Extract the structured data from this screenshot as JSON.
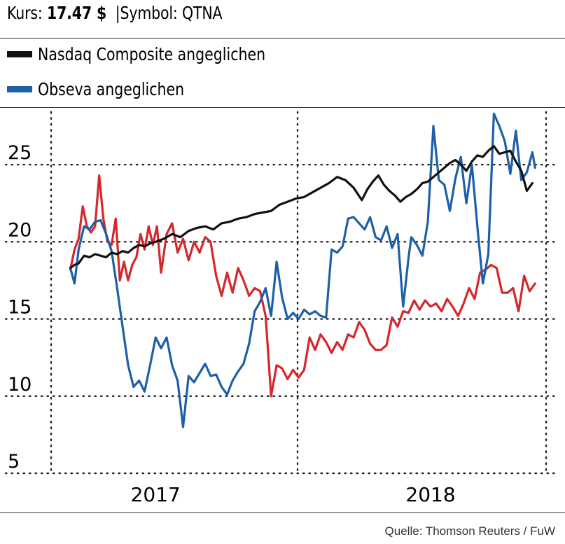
{
  "header": {
    "kurs_label": "Kurs:",
    "kurs_value": "17.47 $",
    "symbol_text": "Symbol: QTNA"
  },
  "source": "Quelle: Thomson Reuters / FuW",
  "colors": {
    "nasdaq": "#111111",
    "obseva": "#1f5fa8",
    "quantenna": "#d4282c",
    "grid": "#222222"
  },
  "chart_data": {
    "type": "line",
    "title": "",
    "xlabel": "",
    "ylabel": "",
    "ylim": [
      5,
      28.5
    ],
    "yticks": [
      5,
      10,
      15,
      20,
      25
    ],
    "xlim": [
      2016.62,
      2018.42
    ],
    "x_ticks": [
      {
        "label": "2017",
        "x": 2017.0
      },
      {
        "label": "2018",
        "x": 2018.0
      }
    ],
    "grid": true,
    "legend": "top-left",
    "series": [
      {
        "name": "Nasdaq Composite angeglichen",
        "color": "#111111",
        "x": [
          2016.69,
          2016.705,
          2016.72,
          2016.74,
          2016.76,
          2016.78,
          2016.8,
          2016.82,
          2016.84,
          2016.86,
          2016.88,
          2016.9,
          2016.92,
          2016.94,
          2016.96,
          2016.98,
          2017.0,
          2017.03,
          2017.06,
          2017.09,
          2017.12,
          2017.15,
          2017.18,
          2017.21,
          2017.24,
          2017.27,
          2017.3,
          2017.33,
          2017.36,
          2017.39,
          2017.42,
          2017.45,
          2017.48,
          2017.51,
          2017.54,
          2017.57,
          2017.6,
          2017.63,
          2017.66,
          2017.69,
          2017.72,
          2017.75,
          2017.77,
          2017.79,
          2017.81,
          2017.83,
          2017.85,
          2017.87,
          2017.89,
          2017.91,
          2017.93,
          2017.95,
          2017.97,
          2017.99,
          2018.01,
          2018.03,
          2018.05,
          2018.07,
          2018.09,
          2018.11,
          2018.13,
          2018.15,
          2018.17,
          2018.19,
          2018.21,
          2018.23,
          2018.25,
          2018.27,
          2018.29,
          2018.31,
          2018.33,
          2018.35,
          2018.37
        ],
        "values": [
          18.3,
          18.5,
          18.6,
          19.1,
          19.0,
          19.2,
          19.1,
          19.0,
          19.3,
          19.2,
          19.4,
          19.3,
          19.6,
          19.8,
          19.7,
          19.9,
          20.0,
          20.2,
          20.5,
          20.3,
          20.7,
          20.9,
          21.0,
          20.8,
          21.2,
          21.3,
          21.5,
          21.6,
          21.8,
          21.9,
          22.0,
          22.4,
          22.6,
          22.8,
          22.9,
          23.2,
          23.5,
          23.8,
          24.2,
          24.0,
          23.5,
          22.7,
          23.4,
          23.9,
          24.3,
          23.7,
          23.3,
          23.0,
          22.6,
          22.9,
          23.1,
          23.4,
          23.8,
          23.9,
          24.2,
          24.5,
          24.8,
          25.1,
          25.3,
          25.0,
          24.6,
          25.2,
          25.6,
          25.5,
          25.9,
          26.2,
          25.7,
          25.8,
          25.9,
          25.2,
          24.6,
          23.3,
          23.8
        ]
      },
      {
        "name": "Obseva angeglichen",
        "color": "#1f5fa8",
        "x": [
          2016.69,
          2016.705,
          2016.72,
          2016.74,
          2016.76,
          2016.78,
          2016.8,
          2016.82,
          2016.84,
          2016.86,
          2016.88,
          2016.9,
          2016.92,
          2016.94,
          2016.96,
          2016.98,
          2017.0,
          2017.02,
          2017.04,
          2017.06,
          2017.08,
          2017.1,
          2017.12,
          2017.14,
          2017.16,
          2017.18,
          2017.2,
          2017.22,
          2017.24,
          2017.26,
          2017.28,
          2017.3,
          2017.32,
          2017.34,
          2017.36,
          2017.38,
          2017.4,
          2017.42,
          2017.44,
          2017.46,
          2017.48,
          2017.5,
          2017.52,
          2017.54,
          2017.56,
          2017.58,
          2017.6,
          2017.62,
          2017.64,
          2017.66,
          2017.68,
          2017.7,
          2017.72,
          2017.74,
          2017.76,
          2017.78,
          2017.8,
          2017.82,
          2017.84,
          2017.86,
          2017.88,
          2017.9,
          2017.92,
          2017.93,
          2017.95,
          2017.97,
          2017.99,
          2018.01,
          2018.03,
          2018.05,
          2018.07,
          2018.09,
          2018.11,
          2018.13,
          2018.15,
          2018.17,
          2018.19,
          2018.21,
          2018.23,
          2018.25,
          2018.27,
          2018.29,
          2018.31,
          2018.33,
          2018.35,
          2018.37,
          2018.38
        ],
        "values": [
          18.3,
          17.3,
          19.5,
          21.0,
          20.8,
          21.3,
          21.4,
          20.5,
          19.4,
          17.0,
          14.5,
          12.0,
          10.6,
          11.0,
          10.3,
          12.0,
          13.8,
          13.1,
          13.8,
          12.0,
          11.0,
          8.0,
          11.3,
          10.9,
          11.5,
          12.1,
          11.3,
          11.4,
          10.6,
          10.1,
          11.0,
          11.6,
          12.1,
          13.4,
          15.5,
          16.1,
          17.0,
          15.2,
          18.7,
          16.4,
          15.0,
          15.4,
          15.0,
          15.6,
          15.3,
          15.5,
          15.2,
          15.1,
          19.5,
          19.3,
          19.7,
          21.5,
          21.6,
          21.2,
          20.8,
          21.6,
          20.3,
          20.1,
          21.0,
          19.6,
          20.5,
          15.8,
          19.0,
          20.3,
          19.8,
          19.1,
          21.3,
          27.5,
          24.0,
          23.7,
          22.0,
          24.1,
          25.5,
          22.5,
          25.0,
          21.0,
          17.3,
          19.2,
          28.3,
          27.5,
          26.5,
          24.4,
          27.2,
          24.0,
          24.5,
          25.8,
          24.8
        ]
      },
      {
        "name": "",
        "color": "#d4282c",
        "x": [
          2016.69,
          2016.705,
          2016.72,
          2016.735,
          2016.75,
          2016.765,
          2016.78,
          2016.795,
          2016.81,
          2016.825,
          2016.84,
          2016.855,
          2016.87,
          2016.885,
          2016.9,
          2016.915,
          2016.93,
          2016.945,
          2016.96,
          2016.975,
          2016.99,
          2017.005,
          2017.02,
          2017.04,
          2017.06,
          2017.08,
          2017.1,
          2017.12,
          2017.14,
          2017.16,
          2017.18,
          2017.2,
          2017.22,
          2017.24,
          2017.26,
          2017.28,
          2017.3,
          2017.32,
          2017.34,
          2017.36,
          2017.38,
          2017.4,
          2017.42,
          2017.44,
          2017.46,
          2017.48,
          2017.5,
          2017.52,
          2017.54,
          2017.56,
          2017.58,
          2017.6,
          2017.62,
          2017.64,
          2017.66,
          2017.68,
          2017.7,
          2017.72,
          2017.74,
          2017.76,
          2017.78,
          2017.8,
          2017.82,
          2017.84,
          2017.86,
          2017.88,
          2017.9,
          2017.92,
          2017.94,
          2017.96,
          2017.98,
          2018.0,
          2018.02,
          2018.04,
          2018.06,
          2018.08,
          2018.1,
          2018.12,
          2018.14,
          2018.16,
          2018.18,
          2018.2,
          2018.22,
          2018.24,
          2018.26,
          2018.28,
          2018.3,
          2018.32,
          2018.34,
          2018.36,
          2018.38
        ],
        "values": [
          18.2,
          19.5,
          20.2,
          22.3,
          21.0,
          20.6,
          21.0,
          24.3,
          21.5,
          20.0,
          19.8,
          21.5,
          17.5,
          18.7,
          17.5,
          18.5,
          19.0,
          20.5,
          19.5,
          21.0,
          19.8,
          21.0,
          18.0,
          20.5,
          21.2,
          19.3,
          20.2,
          18.8,
          20.0,
          19.3,
          20.3,
          20.0,
          17.8,
          16.5,
          18.0,
          16.7,
          18.3,
          17.5,
          16.5,
          17.0,
          16.8,
          15.2,
          10.0,
          12.0,
          11.8,
          11.1,
          11.7,
          11.2,
          11.7,
          13.8,
          13.0,
          14.0,
          13.5,
          12.8,
          13.5,
          13.0,
          14.0,
          13.8,
          14.8,
          14.3,
          13.4,
          13.0,
          13.0,
          13.3,
          15.1,
          14.5,
          15.5,
          15.4,
          16.2,
          15.6,
          16.2,
          15.8,
          16.0,
          15.5,
          16.3,
          15.8,
          15.2,
          16.0,
          17.0,
          16.3,
          18.0,
          18.2,
          18.5,
          18.3,
          16.7,
          16.7,
          17.0,
          15.5,
          17.8,
          16.8,
          17.3
        ]
      }
    ]
  }
}
